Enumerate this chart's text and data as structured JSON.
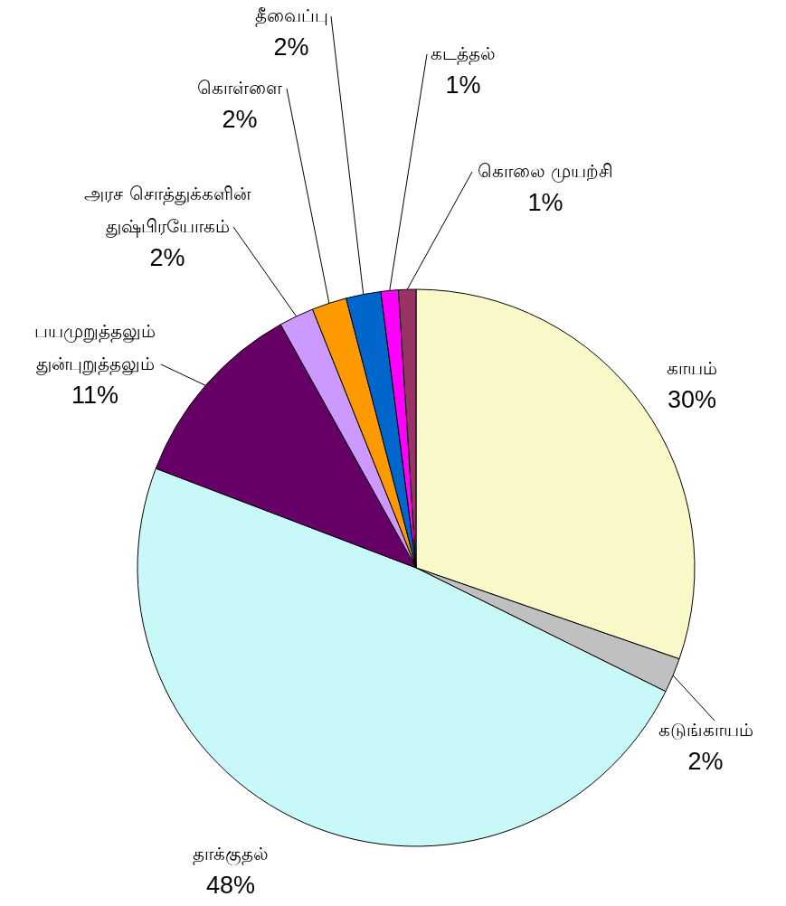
{
  "chart_data": {
    "type": "pie",
    "categories": [
      "காயம்",
      "கடுங்காயம்",
      "தாக்குதல்",
      "பயமுறுத்தலும் துன்புறுத்தலும்",
      "அரச சொத்துக்களின் துஷ்பிரயோகம்",
      "கொள்ளை",
      "தீவைப்பு",
      "கடத்தல்",
      "கொலை முயற்சி"
    ],
    "values": [
      30,
      2,
      48,
      11,
      2,
      2,
      2,
      1,
      1
    ],
    "value_labels": [
      "30%",
      "2%",
      "48%",
      "11%",
      "2%",
      "2%",
      "2%",
      "1%",
      "1%"
    ],
    "colors": [
      "#f8f8c8",
      "#c0c0c0",
      "#c8f8f8",
      "#660066",
      "#cc99ff",
      "#ff9900",
      "#0066cc",
      "#ff00ff",
      "#993366"
    ]
  }
}
